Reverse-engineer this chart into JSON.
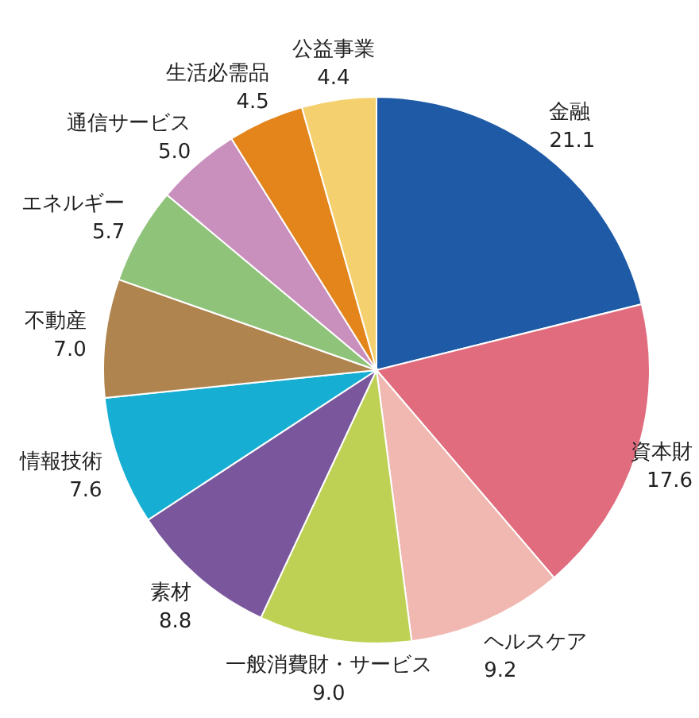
{
  "chart_data": {
    "type": "pie",
    "categories": [
      "金融",
      "資本財",
      "ヘルスケア",
      "一般消費財・サービス",
      "素材",
      "情報技術",
      "不動産",
      "エネルギー",
      "通信サービス",
      "生活必需品",
      "公益事業"
    ],
    "values": [
      21.1,
      17.6,
      9.2,
      9.0,
      8.8,
      7.6,
      7.0,
      5.7,
      5.0,
      4.5,
      4.4
    ],
    "colors": [
      "#1f5aa6",
      "#e06c7e",
      "#f0b8b0",
      "#bfd155",
      "#7a579c",
      "#16aed2",
      "#b0844f",
      "#8fc37a",
      "#c98fbd",
      "#e3851b",
      "#f5d06e"
    ],
    "value_labels": [
      "21.1",
      "17.6",
      "9.2",
      "9.0",
      "8.8",
      "7.6",
      "7.0",
      "5.7",
      "5.0",
      "4.5",
      "4.4"
    ]
  }
}
